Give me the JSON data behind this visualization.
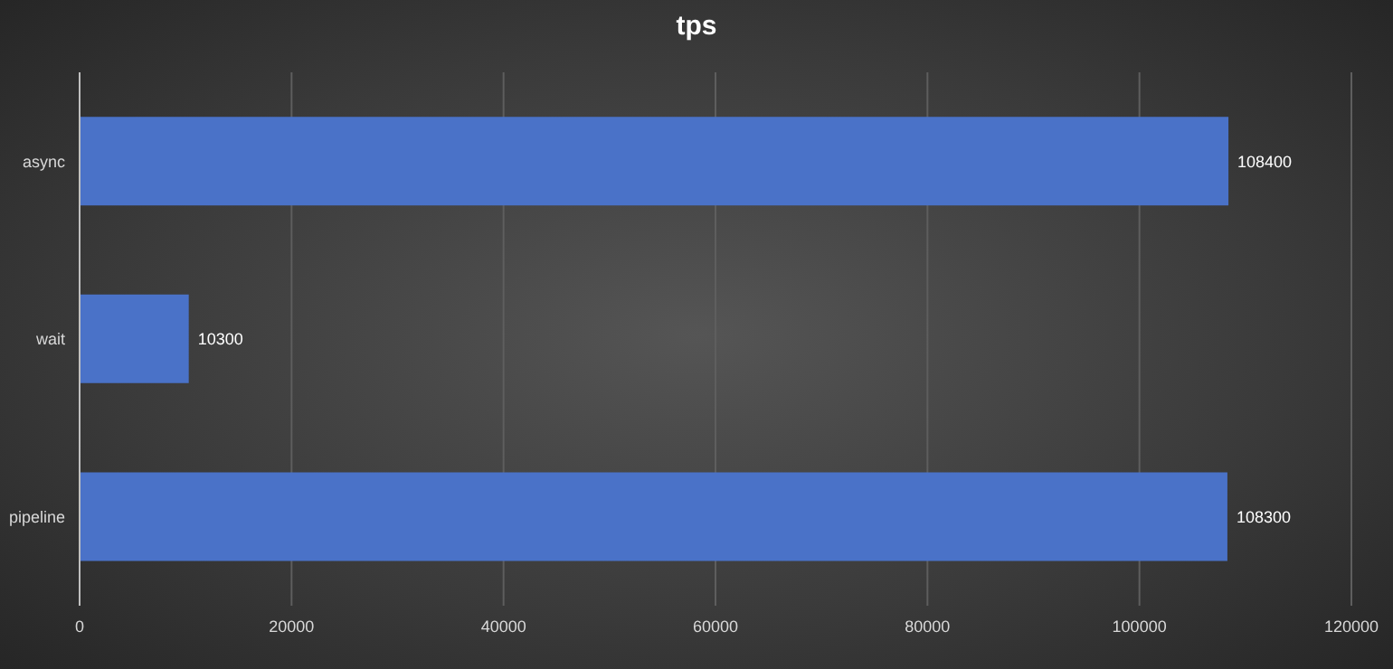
{
  "chart_data": {
    "type": "bar",
    "orientation": "horizontal",
    "title": "tps",
    "categories": [
      "async",
      "wait",
      "pipeline"
    ],
    "values": [
      108400,
      10300,
      108300
    ],
    "color": "#4a72c8",
    "xlim": [
      0,
      120000
    ],
    "xticks": [
      0,
      20000,
      40000,
      60000,
      80000,
      100000,
      120000
    ],
    "grid": "x",
    "data_labels": true,
    "legend": false
  }
}
